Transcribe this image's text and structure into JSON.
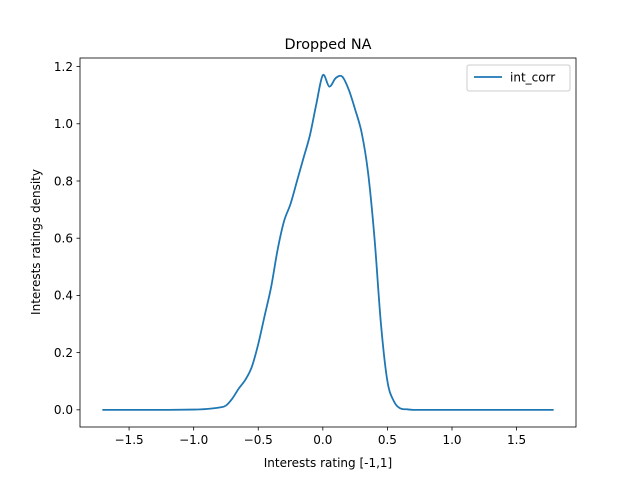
{
  "chart_data": {
    "type": "line",
    "title": "Dropped NA",
    "xlabel": "Interests rating [-1,1]",
    "ylabel": "Interests ratings density",
    "xlim": [
      -1.88,
      1.96
    ],
    "ylim": [
      -0.06,
      1.23
    ],
    "xticks": [
      -1.5,
      -1.0,
      -0.5,
      0.0,
      0.5,
      1.0,
      1.5
    ],
    "xtick_labels": [
      "−1.5",
      "−1.0",
      "−0.5",
      "0.0",
      "0.5",
      "1.0",
      "1.5"
    ],
    "yticks": [
      0.0,
      0.2,
      0.4,
      0.6,
      0.8,
      1.0,
      1.2
    ],
    "ytick_labels": [
      "0.0",
      "0.2",
      "0.4",
      "0.6",
      "0.8",
      "1.0",
      "1.2"
    ],
    "grid": false,
    "legend_position": "upper right",
    "series": [
      {
        "name": "int_corr",
        "color": "#1f77b4",
        "x": [
          -1.7,
          -1.5,
          -1.2,
          -1.0,
          -0.9,
          -0.8,
          -0.75,
          -0.7,
          -0.65,
          -0.6,
          -0.55,
          -0.5,
          -0.45,
          -0.4,
          -0.35,
          -0.3,
          -0.25,
          -0.2,
          -0.15,
          -0.1,
          -0.05,
          0.0,
          0.05,
          0.1,
          0.15,
          0.2,
          0.25,
          0.3,
          0.35,
          0.4,
          0.45,
          0.5,
          0.55,
          0.6,
          0.65,
          0.7,
          0.75,
          0.8,
          0.85,
          0.9,
          0.95,
          1.0,
          1.2,
          1.5,
          1.78
        ],
        "y": [
          0.0,
          0.0,
          0.0,
          0.001,
          0.003,
          0.008,
          0.015,
          0.04,
          0.075,
          0.105,
          0.15,
          0.23,
          0.33,
          0.43,
          0.56,
          0.66,
          0.72,
          0.8,
          0.88,
          0.96,
          1.07,
          1.17,
          1.13,
          1.16,
          1.165,
          1.12,
          1.05,
          0.97,
          0.83,
          0.6,
          0.3,
          0.1,
          0.03,
          0.005,
          0.002,
          0.0,
          0.0,
          0.0,
          0.0,
          0.0,
          0.0,
          0.0,
          0.0,
          0.0,
          0.0
        ]
      }
    ]
  }
}
